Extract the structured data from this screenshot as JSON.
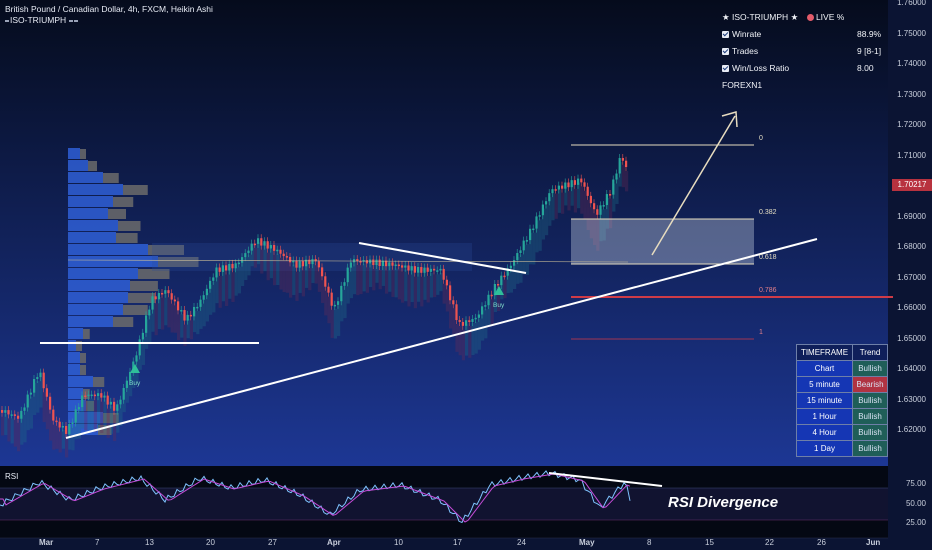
{
  "header": {
    "symbol_line": "British Pound / Canadian Dollar, 4h, FXCM, Heikin Ashi",
    "indicator_line": "ISO-TRIUMPH"
  },
  "stats_panel": {
    "title": "ISO-TRIUMPH",
    "live_label": "LIVE %",
    "rows": [
      {
        "label": "Winrate",
        "value": "88.9%"
      },
      {
        "label": "Trades",
        "value": "9 [8-1]"
      },
      {
        "label": "Win/Loss Ratio",
        "value": "8.00"
      }
    ],
    "account": "FOREXN1"
  },
  "price_axis": {
    "ticks": [
      "1.76000",
      "1.75000",
      "1.74000",
      "1.73000",
      "1.72000",
      "1.71000",
      "1.70000",
      "1.69000",
      "1.68000",
      "1.67000",
      "1.66000",
      "1.65000",
      "1.64000",
      "1.63000",
      "1.62000"
    ],
    "current_price": "1.70217"
  },
  "rsi_axis": {
    "ticks": [
      "75.00",
      "50.00",
      "25.00"
    ]
  },
  "time_axis": {
    "labels": [
      "Mar",
      "7",
      "13",
      "20",
      "27",
      "Apr",
      "10",
      "17",
      "24",
      "May",
      "8",
      "15",
      "22",
      "26",
      "Jun"
    ]
  },
  "fib_levels": [
    "0",
    "0.382",
    "0.618",
    "0.786",
    "1"
  ],
  "signals": {
    "buy_label": "Buy"
  },
  "timeframe_table": {
    "headers": [
      "TIMEFRAME",
      "Trend"
    ],
    "rows": [
      {
        "tf": "Chart",
        "trend": "Bullish",
        "color": "#1f5e58"
      },
      {
        "tf": "5 minute",
        "trend": "Bearish",
        "color": "#b03342"
      },
      {
        "tf": "15 minute",
        "trend": "Bullish",
        "color": "#1f5e58"
      },
      {
        "tf": "1 Hour",
        "trend": "Bullish",
        "color": "#1f5e58"
      },
      {
        "tf": "4 Hour",
        "trend": "Bullish",
        "color": "#1f5e58"
      },
      {
        "tf": "1 Day",
        "trend": "Bullish",
        "color": "#1f5e58"
      }
    ]
  },
  "rsi_panel": {
    "label": "RSI",
    "annotation": "RSI Divergence"
  },
  "colors": {
    "bull": "#26a69a",
    "bear": "#ef5350",
    "background": "#0b1433",
    "price_tag": "#b8323f"
  }
}
